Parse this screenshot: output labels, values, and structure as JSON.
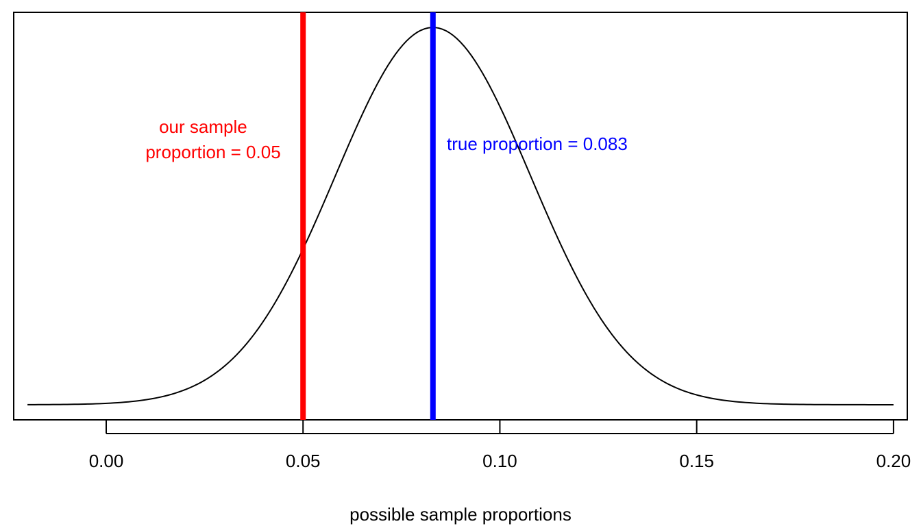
{
  "chart_data": {
    "type": "line",
    "title": "",
    "xlabel": "possible sample proportions",
    "ylabel": "",
    "xlim": [
      -0.0235,
      0.2035
    ],
    "ylim": [
      -0.04,
      1.04
    ],
    "xticks": [
      {
        "value": 0.0,
        "label": "0.00"
      },
      {
        "value": 0.05,
        "label": "0.05"
      },
      {
        "value": 0.1,
        "label": "0.10"
      },
      {
        "value": 0.15,
        "label": "0.15"
      },
      {
        "value": 0.2,
        "label": "0.20"
      }
    ],
    "y_axis_shown": false,
    "grid": false,
    "legend": "none",
    "series": [
      {
        "kind": "normal-density-curve",
        "mean": 0.083,
        "sd": 0.0248,
        "x_range": [
          -0.02,
          0.2
        ],
        "color": "#000000"
      }
    ],
    "vlines": [
      {
        "x": 0.05,
        "color": "#ff0000",
        "label_lines": [
          "our sample",
          "proportion = 0.05"
        ]
      },
      {
        "x": 0.083,
        "color": "#0000ff",
        "label_lines": [
          "true proportion = 0.083"
        ]
      }
    ]
  }
}
